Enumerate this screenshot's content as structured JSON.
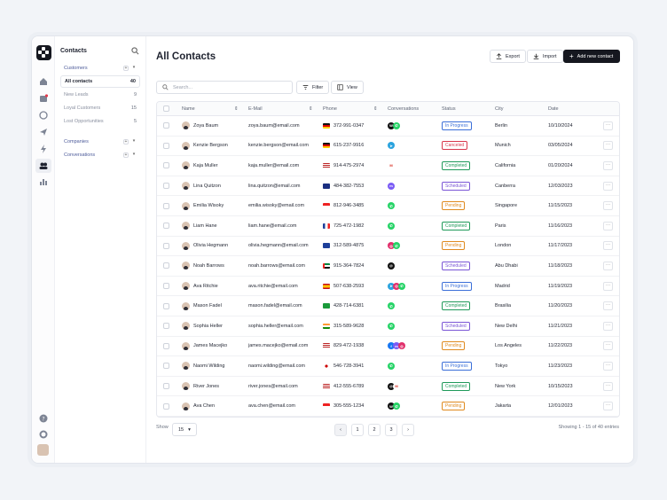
{
  "sidebar": {
    "title": "Contacts",
    "groups": {
      "customers": "Customers",
      "companies": "Companies",
      "conversations": "Conversations"
    },
    "items": [
      {
        "label": "All contacts",
        "count": "40"
      },
      {
        "label": "New Leads",
        "count": "9"
      },
      {
        "label": "Loyal Customers",
        "count": "15"
      },
      {
        "label": "Lost Opportunities",
        "count": "5"
      }
    ]
  },
  "header": {
    "title": "All Contacts",
    "export_label": "Export",
    "import_label": "Import",
    "add_label": "Add new contact"
  },
  "toolbar": {
    "search_placeholder": "Search...",
    "filter_label": "Filter",
    "view_label": "View"
  },
  "table": {
    "columns": [
      "Name",
      "E-Mail",
      "Phone",
      "Conversations",
      "Status",
      "City",
      "Date"
    ],
    "rows": [
      {
        "name": "Zoya Baum",
        "email": "zoya.baum@email.com",
        "phone": "372-991-0347",
        "flag": "de",
        "conv": [
          "wechat",
          "whatsapp"
        ],
        "status": "In Progress",
        "city": "Berlin",
        "date": "10/10/2024"
      },
      {
        "name": "Kenzie Bergson",
        "email": "kenzie.bergson@email.com",
        "phone": "615-237-9916",
        "flag": "de",
        "conv": [
          "telegram"
        ],
        "status": "Canceled",
        "city": "Munich",
        "date": "03/05/2024"
      },
      {
        "name": "Kaja Muller",
        "email": "kaja.muller@email.com",
        "phone": "914-475-2974",
        "flag": "us",
        "conv": [
          "gmail"
        ],
        "status": "Completed",
        "city": "California",
        "date": "01/20/2024"
      },
      {
        "name": "Lina Quitzon",
        "email": "lina.quitzon@email.com",
        "phone": "484-382-7553",
        "flag": "au",
        "conv": [
          "messenger"
        ],
        "status": "Scheduled",
        "city": "Canberra",
        "date": "12/03/2023"
      },
      {
        "name": "Emilia Wisoky",
        "email": "emilia.wisoky@email.com",
        "phone": "812-946-3485",
        "flag": "sg",
        "conv": [
          "whatsapp"
        ],
        "status": "Pending",
        "city": "Singapore",
        "date": "11/15/2023"
      },
      {
        "name": "Liam Hane",
        "email": "liam.hane@email.com",
        "phone": "725-472-1982",
        "flag": "fr",
        "conv": [
          "whatsapp"
        ],
        "status": "Completed",
        "city": "Paris",
        "date": "11/16/2023"
      },
      {
        "name": "Olivia Hegmann",
        "email": "olivia.hegmann@email.com",
        "phone": "312-589-4875",
        "flag": "gb",
        "conv": [
          "instagram",
          "whatsapp"
        ],
        "status": "Pending",
        "city": "London",
        "date": "11/17/2023"
      },
      {
        "name": "Noah Barrows",
        "email": "noah.barrows@email.com",
        "phone": "915-364-7824",
        "flag": "ae",
        "conv": [
          "threads"
        ],
        "status": "Scheduled",
        "city": "Abu Dhabi",
        "date": "11/18/2023"
      },
      {
        "name": "Ava Ritchie",
        "email": "ava.ritchie@email.com",
        "phone": "507-638-2593",
        "flag": "es",
        "conv": [
          "telegram",
          "instagram",
          "whatsapp"
        ],
        "status": "In Progress",
        "city": "Madrid",
        "date": "11/19/2023"
      },
      {
        "name": "Mason Fadel",
        "email": "mason.fadel@email.com",
        "phone": "428-714-6381",
        "flag": "br",
        "conv": [
          "whatsapp"
        ],
        "status": "Completed",
        "city": "Brasilia",
        "date": "11/20/2023"
      },
      {
        "name": "Sophia Heller",
        "email": "sophia.heller@email.com",
        "phone": "315-589-9628",
        "flag": "in",
        "conv": [
          "whatsapp"
        ],
        "status": "Scheduled",
        "city": "New Delhi",
        "date": "11/21/2023"
      },
      {
        "name": "James Macejko",
        "email": "james.macejko@email.com",
        "phone": "829-472-1938",
        "flag": "us",
        "conv": [
          "facebook",
          "messenger",
          "instagram"
        ],
        "status": "Pending",
        "city": "Los Angeles",
        "date": "11/22/2023"
      },
      {
        "name": "Naomi Wilding",
        "email": "naomi.wilding@email.com",
        "phone": "546-728-3941",
        "flag": "jp",
        "conv": [
          "whatsapp"
        ],
        "status": "In Progress",
        "city": "Tokyo",
        "date": "11/23/2023"
      },
      {
        "name": "River Jones",
        "email": "river.jones@email.com",
        "phone": "412-555-6789",
        "flag": "us",
        "conv": [
          "threads",
          "gmail"
        ],
        "status": "Completed",
        "city": "New York",
        "date": "10/15/2023"
      },
      {
        "name": "Ava Chen",
        "email": "ava.chen@email.com",
        "phone": "305-555-1234",
        "flag": "id",
        "conv": [
          "wechat",
          "whatsapp"
        ],
        "status": "Pending",
        "city": "Jakarta",
        "date": "12/01/2023"
      }
    ]
  },
  "footer": {
    "show_label": "Show",
    "page_size": "15",
    "pages": [
      "1",
      "2",
      "3"
    ],
    "summary": "Showing 1 - 15 of 40 entries"
  },
  "status_colors": {
    "In Progress": "#3b6fd8",
    "Canceled": "#d9364a",
    "Completed": "#1f9a5a",
    "Scheduled": "#7a55d6",
    "Pending": "#e08a1e"
  },
  "icons": {
    "rail": [
      "home-icon",
      "inbox-icon",
      "chat-icon",
      "send-icon",
      "bolt-icon",
      "contacts-icon",
      "chart-icon",
      "help-icon",
      "gear-icon"
    ]
  }
}
